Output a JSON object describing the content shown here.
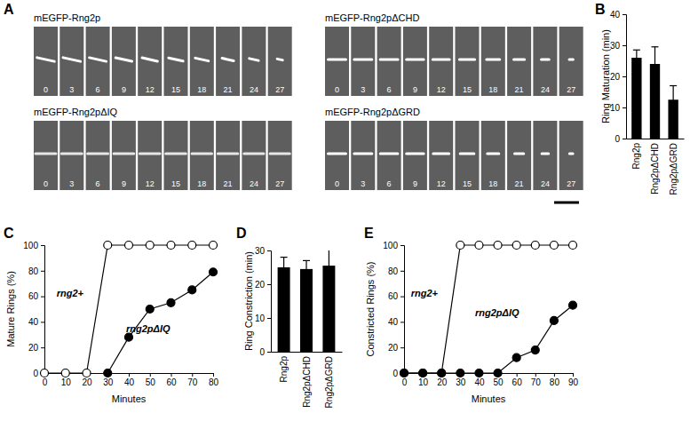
{
  "image_panel": {
    "title": "A",
    "strips": [
      {
        "label": "mEGFP-Rng2p",
        "times": [
          0,
          3,
          6,
          9,
          12,
          15,
          18,
          21,
          24,
          27
        ]
      },
      {
        "label": "mEGFP-Rng2pΔCHD",
        "times": [
          0,
          3,
          6,
          9,
          12,
          15,
          18,
          21,
          24,
          27
        ]
      },
      {
        "label": "mEGFP-Rng2pΔIQ",
        "times": [
          0,
          3,
          6,
          9,
          12,
          15,
          18,
          21,
          24,
          27
        ]
      },
      {
        "label": "mEGFP-Rng2pΔGRD",
        "times": [
          0,
          3,
          6,
          9,
          12,
          15,
          18,
          21,
          24,
          27
        ]
      }
    ]
  },
  "chart_data": [
    {
      "type": "bar",
      "title": "B",
      "ylabel": "Ring Maturation (min)",
      "categories": [
        "Rng2p",
        "Rng2pΔCHD",
        "Rng2pΔGRD"
      ],
      "values": [
        26,
        24,
        12.5
      ],
      "errors": [
        2.5,
        5.5,
        4.5
      ],
      "color": "#000000",
      "ylim": [
        0,
        40
      ],
      "yticks": [
        0,
        10,
        20,
        30,
        40
      ]
    },
    {
      "type": "line",
      "title": "C",
      "xlabel": "Minutes",
      "ylabel": "Mature Rings (%)",
      "x": [
        0,
        10,
        20,
        30,
        40,
        50,
        60,
        70,
        80
      ],
      "xlim": [
        0,
        80
      ],
      "xticks": [
        0,
        10,
        20,
        30,
        40,
        50,
        60,
        70,
        80
      ],
      "ylim": [
        0,
        100
      ],
      "yticks": [
        0,
        20,
        40,
        60,
        80,
        100
      ],
      "series": [
        {
          "name": "rng2+",
          "color": "#000000",
          "marker": "open_circle",
          "line_style": "solid",
          "values": [
            0,
            0,
            0,
            100,
            100,
            100,
            100,
            100,
            100
          ]
        },
        {
          "name": "rng2pΔIQ",
          "color": "#000000",
          "marker": "filled_circle",
          "line_style": "solid",
          "values": [
            null,
            null,
            null,
            0,
            28,
            50,
            55,
            65,
            79
          ]
        }
      ]
    },
    {
      "type": "bar",
      "title": "D",
      "ylabel": "Ring Constriction (min)",
      "categories": [
        "Rng2p",
        "Rng2pΔCHD",
        "Rng2pΔGRD"
      ],
      "values": [
        25,
        24.5,
        25.5
      ],
      "errors": [
        3,
        2.5,
        5
      ],
      "color": "#000000",
      "ylim": [
        0,
        30
      ],
      "yticks": [
        0,
        10,
        20,
        30
      ]
    },
    {
      "type": "line",
      "title": "E",
      "xlabel": "Minutes",
      "ylabel": "Constricted Rings (%)",
      "x": [
        0,
        10,
        20,
        30,
        40,
        50,
        60,
        70,
        80,
        90
      ],
      "xlim": [
        0,
        90
      ],
      "xticks": [
        0,
        10,
        20,
        30,
        40,
        50,
        60,
        70,
        80,
        90
      ],
      "ylim": [
        0,
        100
      ],
      "yticks": [
        0,
        20,
        40,
        60,
        80,
        100
      ],
      "series": [
        {
          "name": "rng2+",
          "color": "#000000",
          "marker": "open_circle",
          "line_style": "solid",
          "values": [
            0,
            0,
            0,
            100,
            100,
            100,
            100,
            100,
            100,
            100
          ]
        },
        {
          "name": "rng2pΔIQ",
          "color": "#000000",
          "marker": "filled_circle",
          "line_style": "solid",
          "values": [
            0,
            0,
            0,
            0,
            0,
            0,
            12,
            18,
            41,
            53
          ]
        }
      ]
    }
  ]
}
